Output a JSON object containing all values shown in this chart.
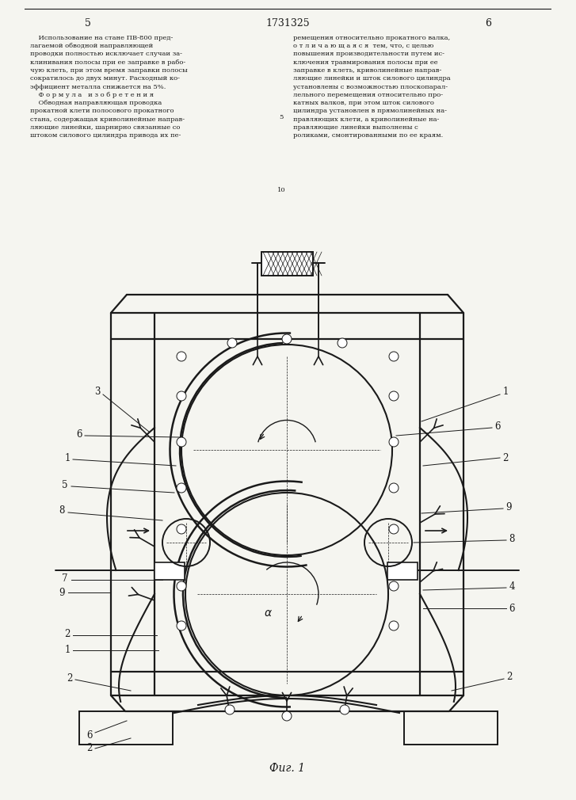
{
  "bg_color": "#f5f5f0",
  "line_color": "#1a1a1a",
  "text_color": "#1a1a1a",
  "fig_caption": "Фиг. 1",
  "page_left": "5",
  "patent_num": "1731325",
  "page_right": "6",
  "label_fs": 8.5,
  "body_fs": 6.0,
  "draw_lw": 1.2
}
